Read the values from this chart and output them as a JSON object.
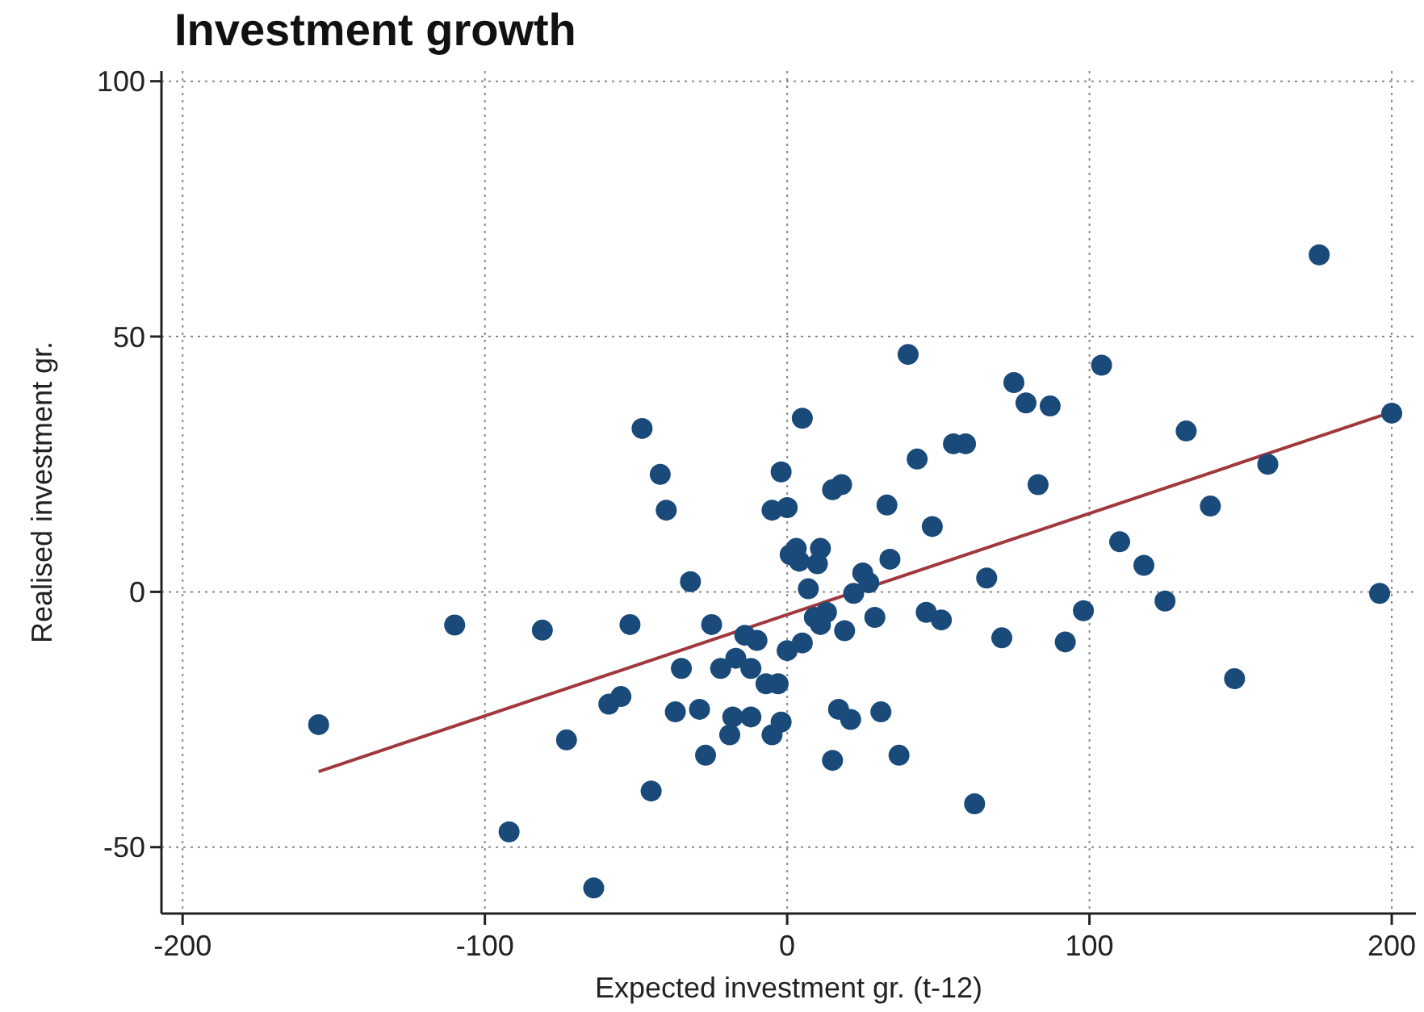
{
  "chart_data": {
    "type": "scatter",
    "title": "Investment growth",
    "xlabel": "Expected investment gr. (t-12)",
    "ylabel": "Realised investment gr.",
    "xlim": [
      -207,
      208
    ],
    "ylim": [
      -63,
      102
    ],
    "xticks": [
      -200,
      -100,
      0,
      100,
      200
    ],
    "yticks": [
      -50,
      0,
      50,
      100
    ],
    "grid": true,
    "series": [
      {
        "marker": "circle",
        "color": "#1a4a7a",
        "x": [
          -155,
          -110,
          -81,
          -92,
          -64,
          -73,
          -52,
          -48,
          -42,
          -40,
          -32,
          -45,
          -59,
          -55,
          -37,
          -29,
          -27,
          -25,
          -35,
          -22,
          -19,
          -18,
          -14,
          -17,
          -12,
          -12,
          -10,
          -7,
          -3,
          -5,
          -2,
          -5,
          -2,
          0,
          0,
          1,
          3,
          4,
          5,
          7,
          5,
          10,
          11,
          11,
          13,
          9,
          15,
          18,
          17,
          15,
          19,
          21,
          22,
          25,
          27,
          29,
          31,
          33,
          34,
          37,
          40,
          43,
          46,
          48,
          51,
          55,
          59,
          62,
          66,
          71,
          75,
          79,
          83,
          87,
          92,
          98,
          104,
          110,
          118,
          125,
          132,
          140,
          148,
          159,
          176,
          196,
          200
        ],
        "values": [
          -26,
          -6.5,
          -7.5,
          -47,
          -58,
          -29,
          -6.4,
          32,
          23,
          16,
          2,
          -39,
          -22,
          -20.5,
          -23.5,
          -23,
          -32,
          -6.4,
          -15,
          -15,
          -28,
          -24.5,
          -8.5,
          -13,
          -15,
          -24.5,
          -9.5,
          -18,
          -18,
          -28,
          -25.5,
          16,
          23.5,
          16.5,
          -11.5,
          7.3,
          8.5,
          6,
          34,
          0.6,
          -10,
          5.5,
          8.5,
          -6.4,
          -4,
          -5,
          20,
          21,
          -23,
          -33,
          -7.6,
          -25,
          -0.3,
          3.7,
          1.8,
          -5,
          -23.5,
          17,
          6.4,
          -32,
          46.5,
          26,
          -4,
          12.8,
          -5.5,
          29,
          29,
          -41.5,
          2.7,
          -9,
          41,
          37,
          21,
          36.4,
          -9.8,
          -3.7,
          44.4,
          9.8,
          5.2,
          -1.8,
          31.5,
          16.8,
          -17,
          25,
          66,
          -0.3,
          35
        ]
      },
      {
        "type": "line",
        "color": "#a0393d",
        "x": [
          -155,
          200
        ],
        "values": [
          -35.2,
          35.2
        ]
      }
    ]
  }
}
